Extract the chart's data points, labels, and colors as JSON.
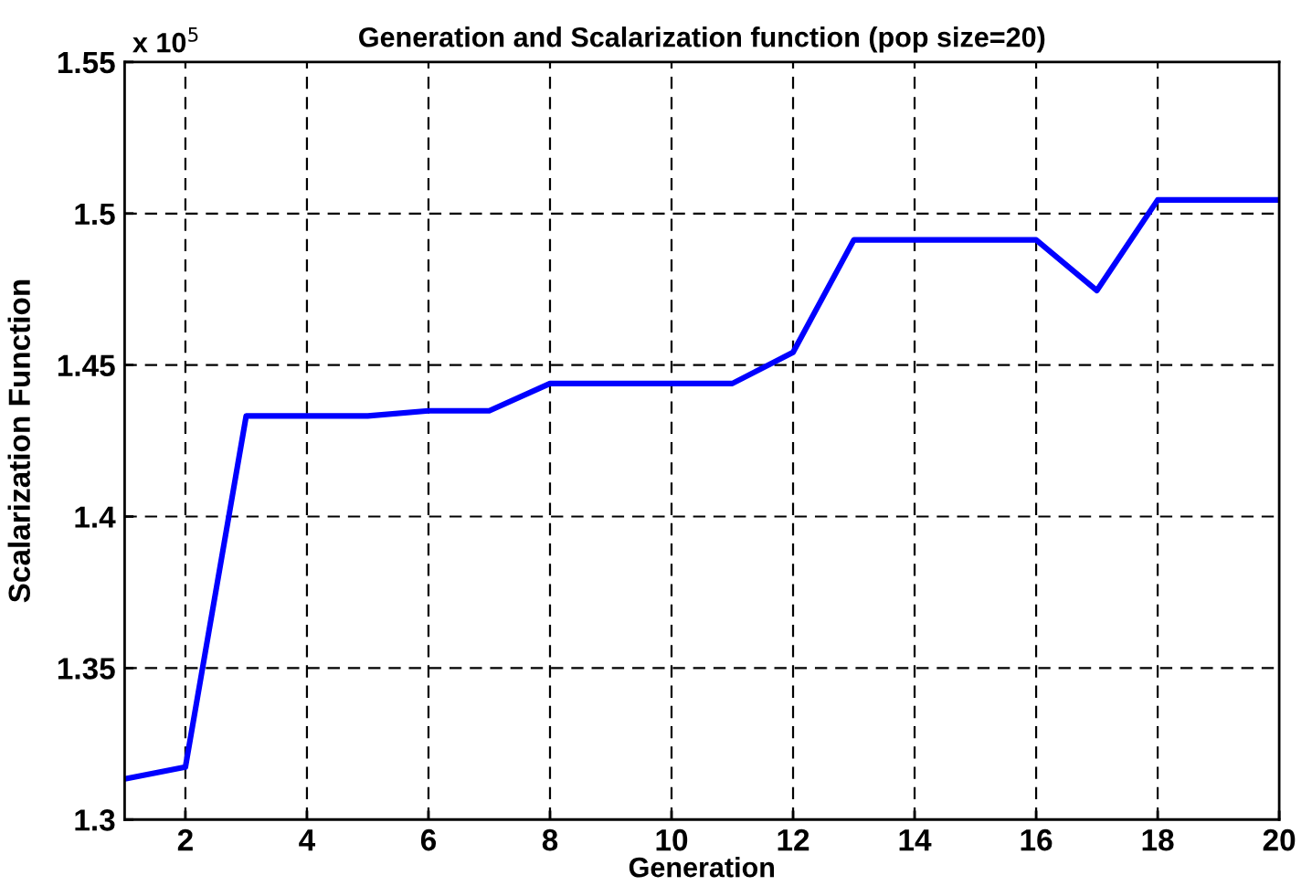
{
  "chart_data": {
    "type": "line",
    "title": "Generation and Scalarization function (pop size=20)",
    "xlabel": "Generation",
    "ylabel": "Scalarization Function",
    "annotations": [
      "x 10$^{5}$"
    ],
    "x": [
      1,
      2,
      3,
      4,
      5,
      6,
      7,
      8,
      9,
      10,
      11,
      12,
      13,
      14,
      15,
      16,
      17,
      18,
      19,
      20
    ],
    "series": [
      {
        "color": "#0000ff",
        "values": [
          1.3134,
          1.3173,
          1.4332,
          1.4332,
          1.4332,
          1.4349,
          1.4349,
          1.4439,
          1.4439,
          1.4439,
          1.4439,
          1.4542,
          1.4913,
          1.4913,
          1.4913,
          1.4913,
          1.4746,
          1.5045,
          1.5045,
          1.5045
        ]
      }
    ],
    "xlim": [
      1,
      20
    ],
    "xticks": [
      2,
      4,
      6,
      8,
      10,
      12,
      14,
      16,
      18,
      20
    ],
    "ylim": [
      1.3,
      1.55
    ],
    "yticks": [
      1.3,
      1.35,
      1.4,
      1.45,
      1.5,
      1.55
    ],
    "grid": true,
    "legend": false,
    "marker": "none",
    "line_style": "solid"
  }
}
